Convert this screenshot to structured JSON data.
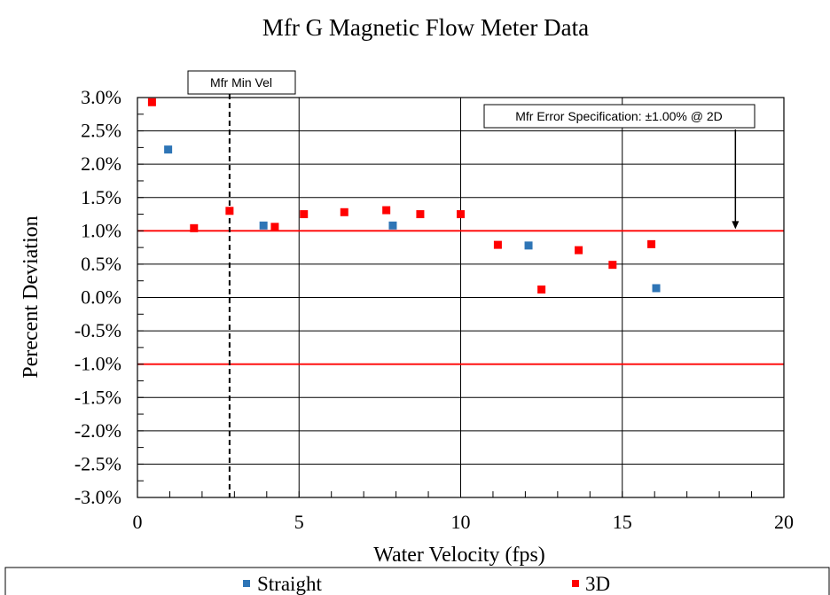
{
  "chart_data": {
    "type": "scatter",
    "title": "Mfr G Magnetic Flow Meter Data",
    "xlabel": "Water Velocity (fps)",
    "ylabel": "Perecent Deviation",
    "xlim": [
      0,
      20
    ],
    "ylim": [
      -3.0,
      3.0
    ],
    "x_ticks": [
      0,
      5,
      10,
      15,
      20
    ],
    "x_tick_labels": [
      "0",
      "5",
      "10",
      "15",
      "20"
    ],
    "y_ticks": [
      3.0,
      2.5,
      2.0,
      1.5,
      1.0,
      0.5,
      0.0,
      -0.5,
      -1.0,
      -1.5,
      -2.0,
      -2.5,
      -3.0
    ],
    "y_tick_labels": [
      "3.0%",
      "2.5%",
      "2.0%",
      "1.5%",
      "1.0%",
      "0.5%",
      "0.0%",
      "-0.5%",
      "-1.0%",
      "-1.5%",
      "-2.0%",
      "-2.5%",
      "-3.0%"
    ],
    "grid": true,
    "legend_position": "bottom",
    "series": [
      {
        "name": "Straight",
        "color": "#2e75b6",
        "marker": "square",
        "points": [
          {
            "x": 0.95,
            "y": 2.22
          },
          {
            "x": 3.9,
            "y": 1.08
          },
          {
            "x": 7.9,
            "y": 1.08
          },
          {
            "x": 12.1,
            "y": 0.78
          },
          {
            "x": 16.05,
            "y": 0.14
          }
        ]
      },
      {
        "name": "3D",
        "color": "#ff0000",
        "marker": "square",
        "points": [
          {
            "x": 0.45,
            "y": 2.93
          },
          {
            "x": 1.75,
            "y": 1.04
          },
          {
            "x": 2.85,
            "y": 1.3
          },
          {
            "x": 4.25,
            "y": 1.06
          },
          {
            "x": 5.15,
            "y": 1.25
          },
          {
            "x": 6.4,
            "y": 1.28
          },
          {
            "x": 7.7,
            "y": 1.31
          },
          {
            "x": 8.75,
            "y": 1.25
          },
          {
            "x": 10.0,
            "y": 1.25
          },
          {
            "x": 11.15,
            "y": 0.79
          },
          {
            "x": 12.5,
            "y": 0.12
          },
          {
            "x": 13.65,
            "y": 0.71
          },
          {
            "x": 14.7,
            "y": 0.49
          },
          {
            "x": 15.9,
            "y": 0.8
          }
        ]
      }
    ],
    "reference_lines": [
      {
        "orientation": "horizontal",
        "y": 1.0,
        "color": "#ff0000",
        "style": "solid"
      },
      {
        "orientation": "horizontal",
        "y": -1.0,
        "color": "#ff0000",
        "style": "solid"
      },
      {
        "orientation": "vertical",
        "x": 2.85,
        "color": "#000000",
        "style": "dashed"
      }
    ],
    "annotations": [
      {
        "text": "Mfr Min Vel",
        "x": 2.85
      },
      {
        "text": "Mfr Error Specification: ±1.00% @ 2D",
        "arrow_to": {
          "x": 18.5,
          "y": 1.0
        }
      }
    ]
  }
}
